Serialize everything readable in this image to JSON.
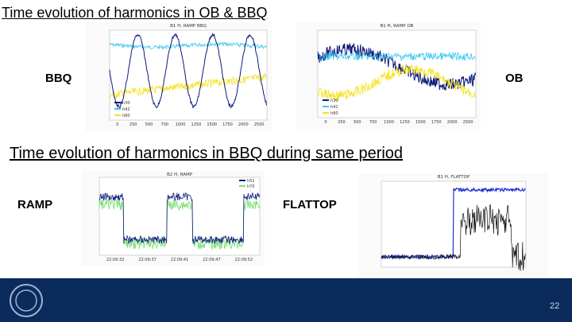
{
  "slide": {
    "title": "Time evolution of harmonics in OB & BBQ",
    "subtitle": "Time evolution of harmonics in BBQ during same period",
    "labels": {
      "bbq": "BBQ",
      "ob": "OB",
      "ramp": "RAMP",
      "flattop": "FLATTOP"
    },
    "page_number": "22",
    "plots": [
      {
        "title": "B1 H, RAMP BBQ",
        "xticks": [
          "0",
          "250",
          "500",
          "700",
          "1000",
          "1250",
          "1500",
          "1750",
          "2000",
          "2500"
        ],
        "legend": [
          "h30",
          "h42",
          "h80"
        ]
      },
      {
        "title": "B1 H, RAMP OB",
        "xticks": [
          "0",
          "250",
          "500",
          "700",
          "1000",
          "1250",
          "1500",
          "1750",
          "2000",
          "2500"
        ],
        "legend": [
          "h30",
          "h42",
          "h80"
        ]
      },
      {
        "title": "B2 H, RAMP",
        "xticks": [
          "22:09:32",
          "22:09:37",
          "22:09:41",
          "22:09:47",
          "22:09:52"
        ],
        "legend": [
          "h52",
          "h70"
        ]
      },
      {
        "title": "B1 H, FLATTOP",
        "xticks": [],
        "legend": []
      }
    ]
  }
}
